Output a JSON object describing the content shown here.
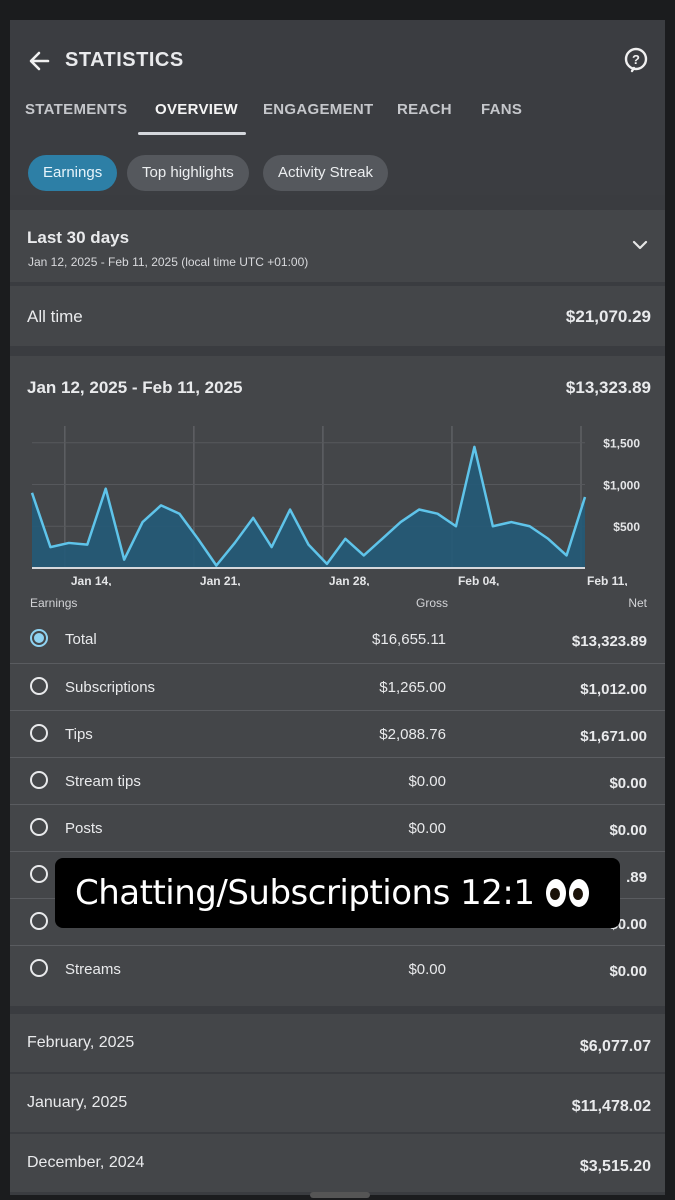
{
  "header": {
    "title": "STATISTICS"
  },
  "tabs": [
    {
      "label": "STATEMENTS",
      "active": false
    },
    {
      "label": "OVERVIEW",
      "active": true
    },
    {
      "label": "ENGAGEMENT",
      "active": false
    },
    {
      "label": "REACH",
      "active": false
    },
    {
      "label": "FANS",
      "active": false
    }
  ],
  "chips": [
    {
      "label": "Earnings",
      "active": true
    },
    {
      "label": "Top highlights",
      "active": false
    },
    {
      "label": "Activity Streak",
      "active": false
    }
  ],
  "period": {
    "label": "Last 30 days",
    "range": "Jan 12, 2025 - Feb 11, 2025 (local time UTC +01:00)"
  },
  "all_time": {
    "label": "All time",
    "value": "$21,070.29"
  },
  "summary": {
    "range": "Jan 12, 2025 - Feb 11, 2025",
    "total": "$13,323.89"
  },
  "chart_data": {
    "type": "area",
    "x": [
      "Jan 12",
      "Jan 13",
      "Jan 14",
      "Jan 15",
      "Jan 16",
      "Jan 17",
      "Jan 18",
      "Jan 19",
      "Jan 20",
      "Jan 21",
      "Jan 22",
      "Jan 23",
      "Jan 24",
      "Jan 25",
      "Jan 26",
      "Jan 27",
      "Jan 28",
      "Jan 29",
      "Jan 30",
      "Jan 31",
      "Feb 01",
      "Feb 02",
      "Feb 03",
      "Feb 04",
      "Feb 05",
      "Feb 06",
      "Feb 07",
      "Feb 08",
      "Feb 09",
      "Feb 10",
      "Feb 11"
    ],
    "values": [
      900,
      250,
      300,
      280,
      950,
      100,
      550,
      750,
      650,
      350,
      30,
      300,
      600,
      250,
      700,
      280,
      50,
      350,
      150,
      350,
      550,
      700,
      650,
      500,
      1450,
      500,
      550,
      500,
      350,
      150,
      850
    ],
    "x_ticks": [
      {
        "line1": "Jan 14,",
        "line2": "2025"
      },
      {
        "line1": "Jan 21,",
        "line2": "2025"
      },
      {
        "line1": "Jan 28,",
        "line2": "2025"
      },
      {
        "line1": "Feb 04,",
        "line2": "2025"
      },
      {
        "line1": "Feb 11,",
        "line2": "2025"
      }
    ],
    "y_ticks": [
      "$1,500",
      "$1,000",
      "$500"
    ],
    "ylim": [
      0,
      1700
    ]
  },
  "columns": {
    "earnings": "Earnings",
    "gross": "Gross",
    "net": "Net"
  },
  "earnings_rows": [
    {
      "label": "Total",
      "gross": "$16,655.11",
      "net": "$13,323.89",
      "selected": true
    },
    {
      "label": "Subscriptions",
      "gross": "$1,265.00",
      "net": "$1,012.00",
      "selected": false
    },
    {
      "label": "Tips",
      "gross": "$2,088.76",
      "net": "$1,671.00",
      "selected": false
    },
    {
      "label": "Stream tips",
      "gross": "$0.00",
      "net": "$0.00",
      "selected": false
    },
    {
      "label": "Posts",
      "gross": "$0.00",
      "net": "$0.00",
      "selected": false
    },
    {
      "label": "",
      "gross": "",
      "net": ".89",
      "selected": false
    },
    {
      "label": "",
      "gross": "",
      "net": "$0.00",
      "selected": false
    },
    {
      "label": "Streams",
      "gross": "$0.00",
      "net": "$0.00",
      "selected": false
    }
  ],
  "months": [
    {
      "label": "February, 2025",
      "value": "$6,077.07"
    },
    {
      "label": "January, 2025",
      "value": "$11,478.02"
    },
    {
      "label": "December, 2024",
      "value": "$3,515.20"
    }
  ],
  "overlay": {
    "text": "Chatting/Subscriptions 12:1"
  },
  "colors": {
    "accent": "#2d7fa6",
    "line": "#5fc4ea",
    "fill": "#235a78"
  }
}
